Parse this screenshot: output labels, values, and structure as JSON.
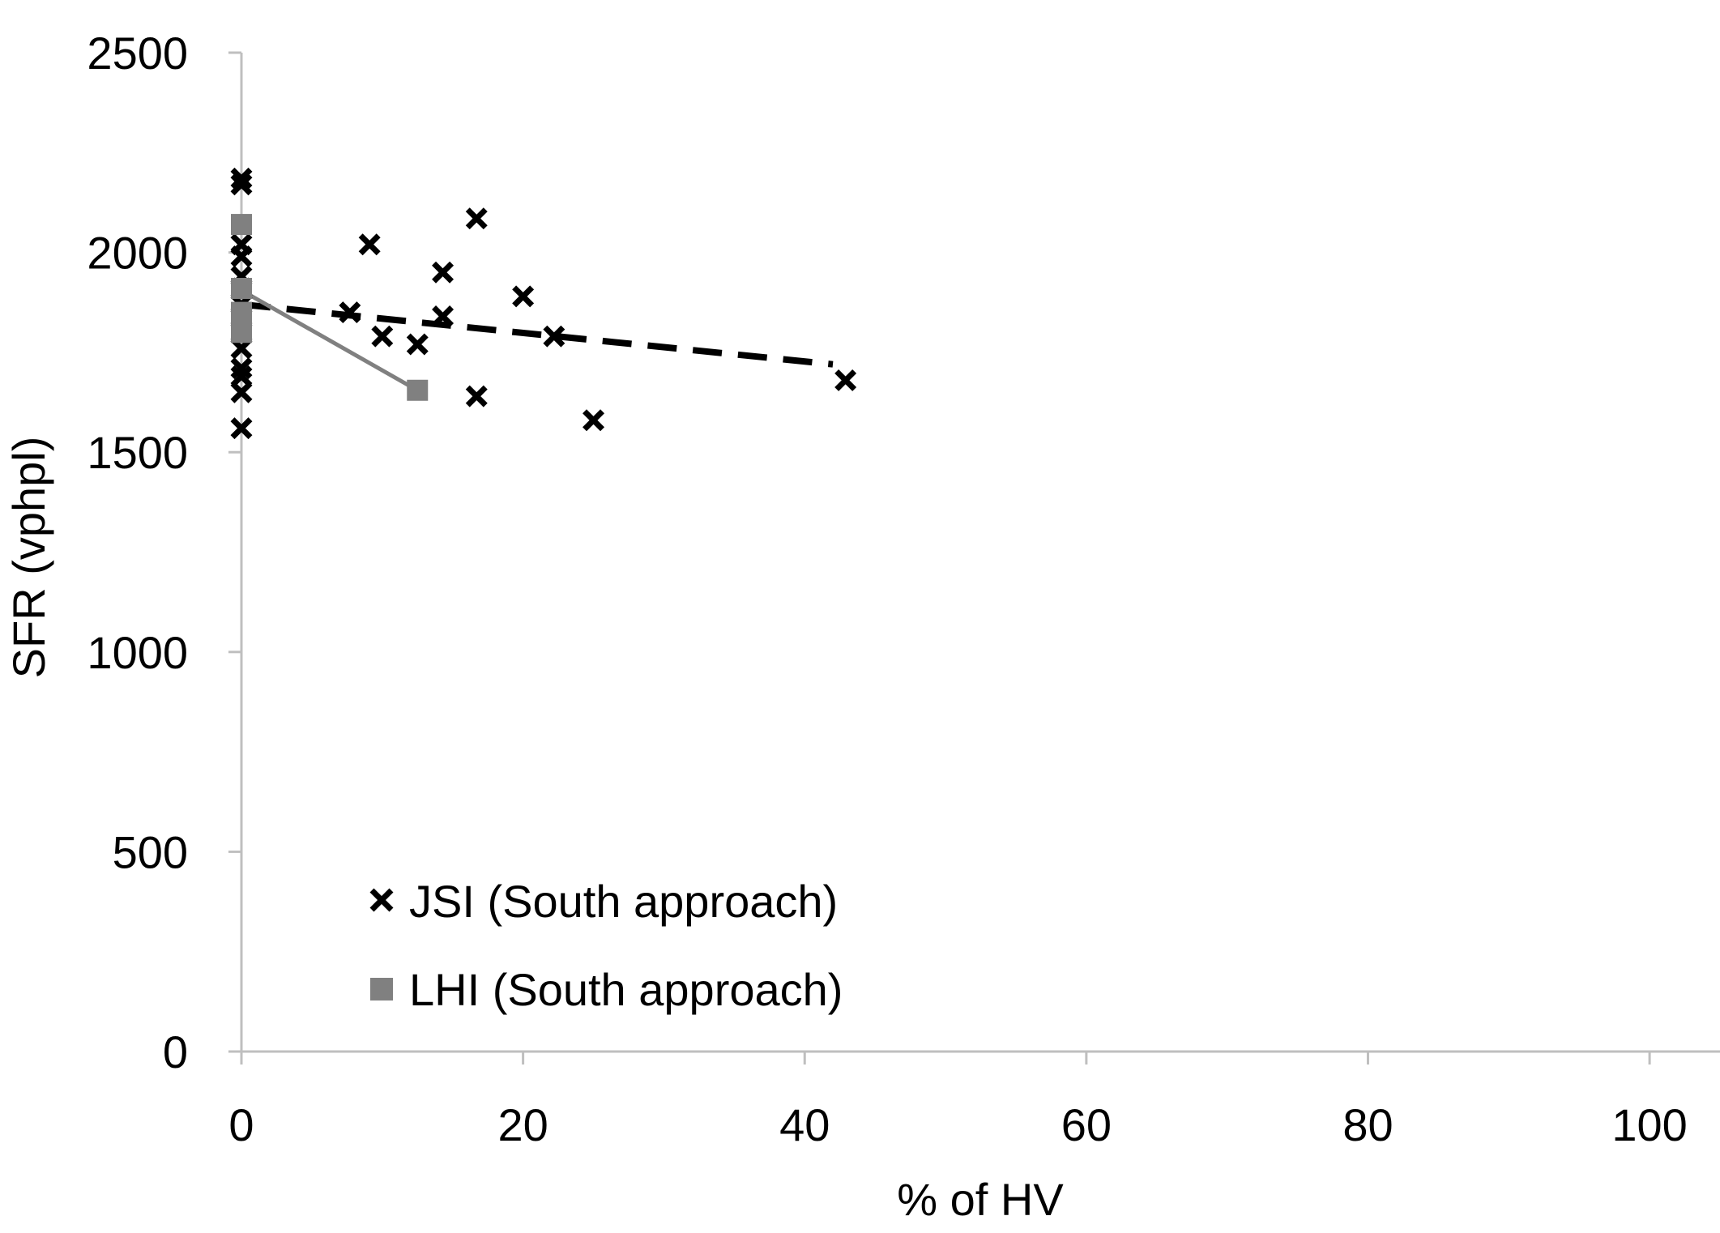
{
  "chart_data": {
    "type": "scatter",
    "title": "",
    "xlabel": "% of HV",
    "ylabel": "SFR (vphpl)",
    "xlim": [
      0,
      105
    ],
    "ylim": [
      0,
      2500
    ],
    "xticks": [
      0,
      20,
      40,
      60,
      80,
      100
    ],
    "yticks": [
      0,
      500,
      1000,
      1500,
      2000,
      2500
    ],
    "grid": false,
    "legend_position": "bottom-left",
    "colors": {
      "jsi": "#000000",
      "lhi": "#808080",
      "axis": "#bfbfbf"
    },
    "series": [
      {
        "name": "JSI (South approach)",
        "marker": "x",
        "points": [
          {
            "x": 0,
            "y": 2185
          },
          {
            "x": 0,
            "y": 2170
          },
          {
            "x": 0,
            "y": 2020
          },
          {
            "x": 0,
            "y": 1990
          },
          {
            "x": 0,
            "y": 1940
          },
          {
            "x": 0,
            "y": 1910
          },
          {
            "x": 0,
            "y": 1870
          },
          {
            "x": 0,
            "y": 1840
          },
          {
            "x": 0,
            "y": 1800
          },
          {
            "x": 0,
            "y": 1760
          },
          {
            "x": 0,
            "y": 1710
          },
          {
            "x": 0,
            "y": 1690
          },
          {
            "x": 0,
            "y": 1650
          },
          {
            "x": 0,
            "y": 1560
          },
          {
            "x": 7.7,
            "y": 1850
          },
          {
            "x": 9.1,
            "y": 2020
          },
          {
            "x": 10,
            "y": 1790
          },
          {
            "x": 12.5,
            "y": 1770
          },
          {
            "x": 14.3,
            "y": 1950
          },
          {
            "x": 14.3,
            "y": 1840
          },
          {
            "x": 16.7,
            "y": 2085
          },
          {
            "x": 16.7,
            "y": 1640
          },
          {
            "x": 20,
            "y": 1890
          },
          {
            "x": 22.2,
            "y": 1790
          },
          {
            "x": 25,
            "y": 1580
          },
          {
            "x": 42.9,
            "y": 1680
          }
        ],
        "trendline": {
          "style": "dashed",
          "from": [
            0,
            1870
          ],
          "to": [
            42,
            1720
          ]
        }
      },
      {
        "name": "LHI (South approach)",
        "marker": "square",
        "points": [
          {
            "x": 0,
            "y": 2070
          },
          {
            "x": 0,
            "y": 1910
          },
          {
            "x": 0,
            "y": 1850
          },
          {
            "x": 0,
            "y": 1800
          },
          {
            "x": 12.5,
            "y": 1655
          }
        ],
        "trendline": {
          "style": "solid",
          "from": [
            0,
            1905
          ],
          "to": [
            12.5,
            1655
          ]
        }
      }
    ]
  }
}
